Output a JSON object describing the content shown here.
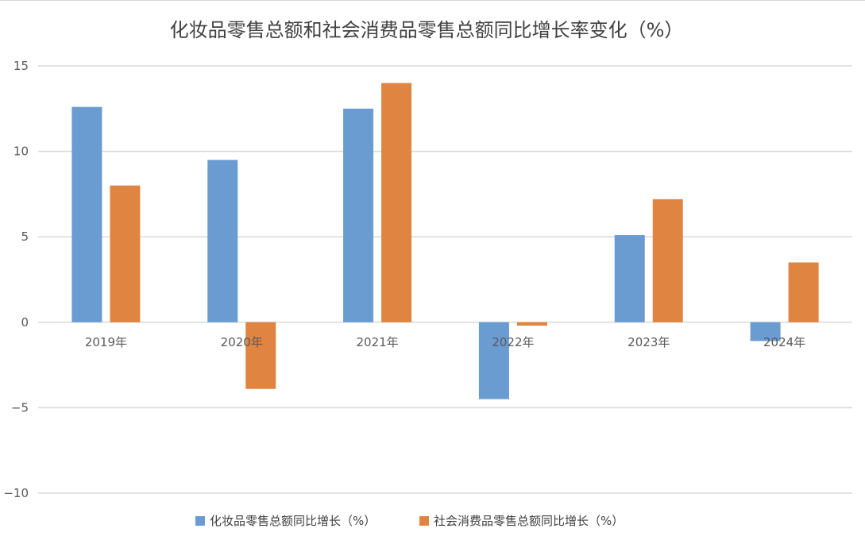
{
  "chart_data": {
    "type": "bar",
    "title": "化妆品零售总额和社会消费品零售总额同比增长率变化（%）",
    "categories": [
      "2019年",
      "2020年",
      "2021年",
      "2022年",
      "2023年",
      "2024年"
    ],
    "series": [
      {
        "name": "化妆品零售总额同比增长（%）",
        "color": "#6a9bd1",
        "values": [
          12.6,
          9.5,
          12.5,
          -4.5,
          5.1,
          -1.1
        ]
      },
      {
        "name": "社会消费品零售总额同比增长（%）",
        "color": "#e08441",
        "values": [
          8.0,
          -3.9,
          14.0,
          -0.2,
          7.2,
          3.5
        ]
      }
    ],
    "ylim": [
      -10,
      15
    ],
    "yticks": [
      15,
      10,
      5,
      0,
      -5,
      -10
    ],
    "ytick_labels": [
      "15",
      "10",
      "5",
      "0",
      "−5",
      "−10"
    ],
    "grid": true,
    "legend_position": "bottom",
    "xlabel": "",
    "ylabel": ""
  }
}
